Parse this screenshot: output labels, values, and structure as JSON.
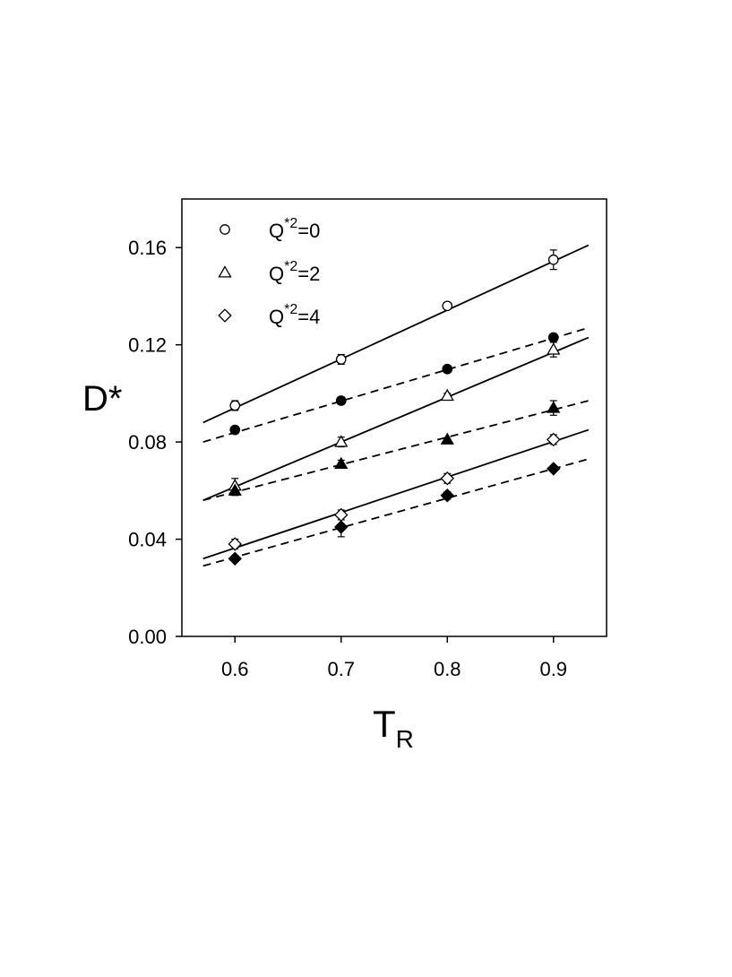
{
  "chart_data": {
    "type": "scatter",
    "title": "",
    "xlabel": "T",
    "xlabel_sub": "R",
    "ylabel": "D*",
    "xlim": [
      0.55,
      0.95
    ],
    "ylim": [
      0.0,
      0.18
    ],
    "x_ticks": [
      "0.6",
      "0.7",
      "0.8",
      "0.9"
    ],
    "y_ticks": [
      "0.00",
      "0.04",
      "0.08",
      "0.12",
      "0.16"
    ],
    "grid": false,
    "legend_position": "top-left",
    "legend": [
      {
        "marker": "circle-open",
        "label_main": "Q",
        "label_sup": "*2",
        "label_tail": "=0"
      },
      {
        "marker": "triangle-open",
        "label_main": "Q",
        "label_sup": "*2",
        "label_tail": "=2"
      },
      {
        "marker": "diamond-open",
        "label_main": "Q",
        "label_sup": "*2",
        "label_tail": "=4"
      }
    ],
    "series": [
      {
        "marker": "circle-open",
        "line": "solid",
        "x": [
          0.6,
          0.7,
          0.8,
          0.9
        ],
        "y": [
          0.095,
          0.114,
          0.136,
          0.155
        ],
        "err": [
          0.002,
          0.002,
          0.001,
          0.004
        ],
        "fit": [
          0.088,
          0.161
        ]
      },
      {
        "marker": "circle-filled",
        "line": "dashed",
        "x": [
          0.6,
          0.7,
          0.8,
          0.9
        ],
        "y": [
          0.085,
          0.097,
          0.11,
          0.123
        ],
        "err": [
          0.0,
          0.0015,
          0.0,
          0.0015
        ],
        "fit": [
          0.08,
          0.127
        ]
      },
      {
        "marker": "triangle-open",
        "line": "solid",
        "x": [
          0.6,
          0.7,
          0.8,
          0.9
        ],
        "y": [
          0.062,
          0.08,
          0.099,
          0.118
        ],
        "err": [
          0.003,
          0.002,
          0.001,
          0.003
        ],
        "fit": [
          0.056,
          0.123
        ]
      },
      {
        "marker": "triangle-filled",
        "line": "dashed",
        "x": [
          0.6,
          0.7,
          0.8,
          0.9
        ],
        "y": [
          0.06,
          0.071,
          0.081,
          0.094
        ],
        "err": [
          0.002,
          0.0015,
          0.0,
          0.003
        ],
        "fit": [
          0.056,
          0.097
        ]
      },
      {
        "marker": "diamond-open",
        "line": "solid",
        "x": [
          0.6,
          0.7,
          0.8,
          0.9
        ],
        "y": [
          0.038,
          0.05,
          0.065,
          0.081
        ],
        "err": [
          0.002,
          0.002,
          0.002,
          0.002
        ],
        "fit": [
          0.032,
          0.085
        ]
      },
      {
        "marker": "diamond-filled",
        "line": "dashed",
        "x": [
          0.6,
          0.7,
          0.8,
          0.9
        ],
        "y": [
          0.032,
          0.045,
          0.058,
          0.069
        ],
        "err": [
          0.0,
          0.004,
          0.0015,
          0.0
        ],
        "fit": [
          0.029,
          0.073
        ]
      }
    ]
  }
}
